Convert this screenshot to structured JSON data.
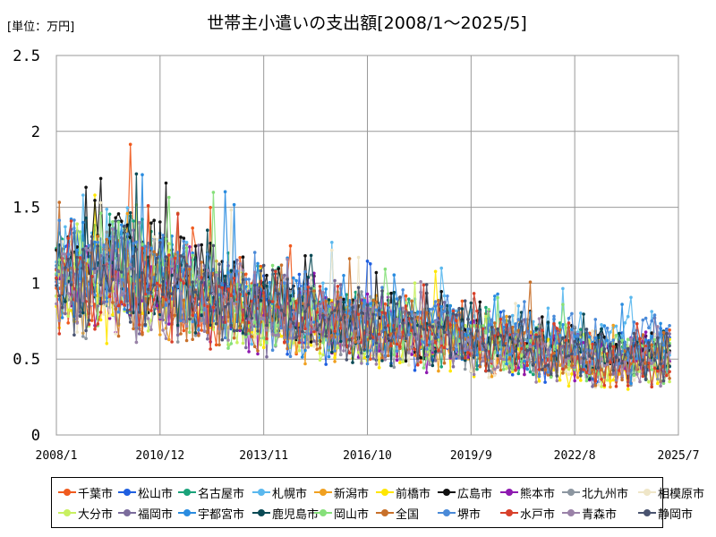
{
  "chart_data": {
    "type": "line",
    "title": "世帯主小遣いの支出額[2008/1～2025/5]",
    "unit_label": "[単位：万円]",
    "x_range": [
      "2008-01",
      "2025-07"
    ],
    "x_ticks": [
      "2008/1",
      "2010/12",
      "2013/11",
      "2016/10",
      "2019/9",
      "2022/8",
      "2025/7"
    ],
    "ylim": [
      0,
      2.5
    ],
    "y_ticks": [
      "0",
      "0.5",
      "1",
      "1.5",
      "2",
      "2.5"
    ],
    "grid": true,
    "legend_position": "bottom",
    "series": [
      {
        "name": "千葉市",
        "color": "#f05a1e",
        "anchors": [
          [
            2008.0,
            1.0
          ],
          [
            2009.5,
            1.05
          ],
          [
            2011.5,
            0.95
          ],
          [
            2014.0,
            0.8
          ],
          [
            2016.5,
            0.7
          ],
          [
            2019.0,
            0.65
          ],
          [
            2021.5,
            0.55
          ],
          [
            2023.5,
            0.5
          ],
          [
            2025.33,
            0.55
          ]
        ]
      },
      {
        "name": "松山市",
        "color": "#1f5fe0",
        "anchors": [
          [
            2008.0,
            1.05
          ],
          [
            2009.5,
            1.05
          ],
          [
            2011.5,
            0.95
          ],
          [
            2014.0,
            0.8
          ],
          [
            2016.5,
            0.7
          ],
          [
            2019.0,
            0.65
          ],
          [
            2021.5,
            0.55
          ],
          [
            2023.5,
            0.48
          ],
          [
            2025.33,
            0.6
          ]
        ]
      },
      {
        "name": "名古屋市",
        "color": "#1aa37a",
        "anchors": [
          [
            2008.0,
            1.1
          ],
          [
            2009.5,
            1.1
          ],
          [
            2011.5,
            1.0
          ],
          [
            2014.0,
            0.85
          ],
          [
            2016.5,
            0.72
          ],
          [
            2019.0,
            0.68
          ],
          [
            2021.5,
            0.58
          ],
          [
            2023.5,
            0.52
          ],
          [
            2025.33,
            0.55
          ]
        ]
      },
      {
        "name": "札幌市",
        "color": "#5ab8ee",
        "anchors": [
          [
            2008.0,
            1.15
          ],
          [
            2009.5,
            1.2
          ],
          [
            2011.5,
            1.0
          ],
          [
            2014.0,
            0.85
          ],
          [
            2016.5,
            0.78
          ],
          [
            2019.0,
            0.75
          ],
          [
            2021.5,
            0.65
          ],
          [
            2023.5,
            0.62
          ],
          [
            2025.33,
            0.6
          ]
        ]
      },
      {
        "name": "新潟市",
        "color": "#f0a020",
        "anchors": [
          [
            2008.0,
            0.95
          ],
          [
            2009.5,
            1.0
          ],
          [
            2011.5,
            0.9
          ],
          [
            2014.0,
            0.78
          ],
          [
            2016.5,
            0.7
          ],
          [
            2019.0,
            0.62
          ],
          [
            2021.5,
            0.55
          ],
          [
            2023.5,
            0.5
          ],
          [
            2025.33,
            0.5
          ]
        ]
      },
      {
        "name": "前橋市",
        "color": "#ffe600",
        "anchors": [
          [
            2008.0,
            0.9
          ],
          [
            2009.5,
            0.95
          ],
          [
            2011.5,
            0.88
          ],
          [
            2014.0,
            0.75
          ],
          [
            2016.5,
            0.65
          ],
          [
            2019.0,
            0.6
          ],
          [
            2021.5,
            0.52
          ],
          [
            2023.5,
            0.45
          ],
          [
            2025.33,
            0.5
          ]
        ]
      },
      {
        "name": "広島市",
        "color": "#111111",
        "anchors": [
          [
            2008.0,
            1.2
          ],
          [
            2009.5,
            1.25
          ],
          [
            2011.5,
            1.0
          ],
          [
            2014.0,
            0.85
          ],
          [
            2016.5,
            0.75
          ],
          [
            2019.0,
            0.7
          ],
          [
            2021.5,
            0.6
          ],
          [
            2023.5,
            0.5
          ],
          [
            2025.33,
            0.55
          ]
        ]
      },
      {
        "name": "熊本市",
        "color": "#8e1ab0",
        "anchors": [
          [
            2008.0,
            1.0
          ],
          [
            2009.5,
            1.0
          ],
          [
            2011.5,
            0.95
          ],
          [
            2014.0,
            0.82
          ],
          [
            2016.5,
            0.72
          ],
          [
            2019.0,
            0.66
          ],
          [
            2021.5,
            0.56
          ],
          [
            2023.5,
            0.5
          ],
          [
            2025.33,
            0.52
          ]
        ]
      },
      {
        "name": "北九州市",
        "color": "#8c96a0",
        "anchors": [
          [
            2008.0,
            0.95
          ],
          [
            2009.5,
            1.0
          ],
          [
            2011.5,
            0.92
          ],
          [
            2014.0,
            0.8
          ],
          [
            2016.5,
            0.7
          ],
          [
            2019.0,
            0.64
          ],
          [
            2021.5,
            0.56
          ],
          [
            2023.5,
            0.5
          ],
          [
            2025.33,
            0.5
          ]
        ]
      },
      {
        "name": "相模原市",
        "color": "#efe6c8",
        "anchors": [
          [
            2008.0,
            1.0
          ],
          [
            2009.5,
            1.0
          ],
          [
            2011.5,
            0.92
          ],
          [
            2014.0,
            0.8
          ],
          [
            2016.5,
            0.7
          ],
          [
            2019.0,
            0.64
          ],
          [
            2021.5,
            0.55
          ],
          [
            2023.5,
            0.5
          ],
          [
            2025.33,
            0.52
          ]
        ]
      },
      {
        "name": "大分市",
        "color": "#c8f060",
        "anchors": [
          [
            2008.0,
            1.0
          ],
          [
            2009.5,
            1.05
          ],
          [
            2011.5,
            0.95
          ],
          [
            2014.0,
            0.8
          ],
          [
            2016.5,
            0.7
          ],
          [
            2019.0,
            0.64
          ],
          [
            2021.5,
            0.55
          ],
          [
            2023.5,
            0.48
          ],
          [
            2025.33,
            0.5
          ]
        ]
      },
      {
        "name": "福岡市",
        "color": "#7b6c9c",
        "anchors": [
          [
            2008.0,
            1.0
          ],
          [
            2009.5,
            1.05
          ],
          [
            2011.5,
            0.95
          ],
          [
            2014.0,
            0.82
          ],
          [
            2016.5,
            0.72
          ],
          [
            2019.0,
            0.66
          ],
          [
            2021.5,
            0.56
          ],
          [
            2023.5,
            0.5
          ],
          [
            2025.33,
            0.52
          ]
        ]
      },
      {
        "name": "宇都宮市",
        "color": "#2a8ce0",
        "anchors": [
          [
            2008.0,
            1.05
          ],
          [
            2009.5,
            1.1
          ],
          [
            2011.5,
            0.98
          ],
          [
            2014.0,
            0.84
          ],
          [
            2016.5,
            0.74
          ],
          [
            2019.0,
            0.7
          ],
          [
            2021.5,
            0.6
          ],
          [
            2023.5,
            0.55
          ],
          [
            2025.33,
            0.56
          ]
        ]
      },
      {
        "name": "鹿児島市",
        "color": "#0a4a55",
        "anchors": [
          [
            2008.0,
            1.1
          ],
          [
            2009.5,
            1.15
          ],
          [
            2011.5,
            1.0
          ],
          [
            2014.0,
            0.85
          ],
          [
            2016.5,
            0.74
          ],
          [
            2019.0,
            0.68
          ],
          [
            2021.5,
            0.58
          ],
          [
            2023.5,
            0.5
          ],
          [
            2025.33,
            0.52
          ]
        ]
      },
      {
        "name": "岡山市",
        "color": "#86e07a",
        "anchors": [
          [
            2008.0,
            1.05
          ],
          [
            2009.5,
            1.1
          ],
          [
            2011.5,
            0.95
          ],
          [
            2014.0,
            0.82
          ],
          [
            2016.5,
            0.72
          ],
          [
            2019.0,
            0.66
          ],
          [
            2021.5,
            0.56
          ],
          [
            2023.5,
            0.5
          ],
          [
            2025.33,
            0.52
          ]
        ]
      },
      {
        "name": "全国",
        "color": "#c8702a",
        "anchors": [
          [
            2008.0,
            1.0
          ],
          [
            2009.5,
            1.02
          ],
          [
            2011.5,
            0.93
          ],
          [
            2014.0,
            0.8
          ],
          [
            2016.5,
            0.7
          ],
          [
            2019.0,
            0.64
          ],
          [
            2021.5,
            0.56
          ],
          [
            2023.5,
            0.5
          ],
          [
            2025.33,
            0.52
          ]
        ]
      },
      {
        "name": "堺市",
        "color": "#4a8ad8",
        "anchors": [
          [
            2008.0,
            1.05
          ],
          [
            2009.5,
            1.1
          ],
          [
            2011.5,
            0.98
          ],
          [
            2014.0,
            0.85
          ],
          [
            2016.5,
            0.74
          ],
          [
            2019.0,
            0.7
          ],
          [
            2021.5,
            0.62
          ],
          [
            2023.5,
            0.58
          ],
          [
            2025.33,
            0.6
          ]
        ]
      },
      {
        "name": "水戸市",
        "color": "#d8402a",
        "anchors": [
          [
            2008.0,
            1.0
          ],
          [
            2009.5,
            1.0
          ],
          [
            2011.5,
            0.92
          ],
          [
            2014.0,
            0.8
          ],
          [
            2016.5,
            0.7
          ],
          [
            2019.0,
            0.64
          ],
          [
            2021.5,
            0.55
          ],
          [
            2023.5,
            0.48
          ],
          [
            2025.33,
            0.45
          ]
        ]
      },
      {
        "name": "青森市",
        "color": "#9a82a8",
        "anchors": [
          [
            2008.0,
            0.95
          ],
          [
            2009.5,
            1.0
          ],
          [
            2011.5,
            0.9
          ],
          [
            2014.0,
            0.78
          ],
          [
            2016.5,
            0.68
          ],
          [
            2019.0,
            0.62
          ],
          [
            2021.5,
            0.54
          ],
          [
            2023.5,
            0.48
          ],
          [
            2025.33,
            0.5
          ]
        ]
      },
      {
        "name": "静岡市",
        "color": "#4a5470",
        "anchors": [
          [
            2008.0,
            1.0
          ],
          [
            2009.5,
            1.05
          ],
          [
            2011.5,
            0.95
          ],
          [
            2014.0,
            0.82
          ],
          [
            2016.5,
            0.72
          ],
          [
            2019.0,
            0.66
          ],
          [
            2021.5,
            0.56
          ],
          [
            2023.5,
            0.5
          ],
          [
            2025.33,
            0.52
          ]
        ]
      }
    ]
  }
}
